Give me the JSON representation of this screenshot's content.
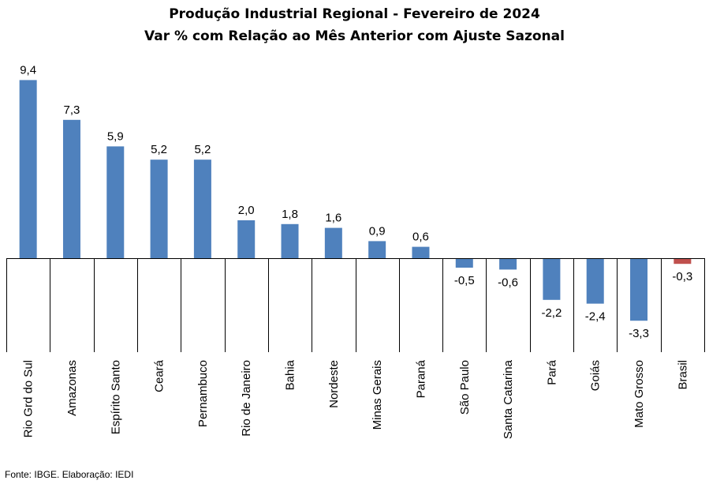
{
  "chart_data": {
    "type": "bar",
    "title": "Produção Industrial Regional  - Fevereiro de 2024",
    "subtitle": "Var % com Relação ao Mês Anterior com Ajuste Sazonal",
    "categories": [
      "Rio Grd do Sul",
      "Amazonas",
      "Espírito Santo",
      "Ceará",
      "Pernambuco",
      "Rio de Janeiro",
      "Bahia",
      "Nordeste",
      "Minas Gerais",
      "Paraná",
      "São Paulo",
      "Santa Catarina",
      "Pará",
      "Goiás",
      "Mato Grosso",
      "Brasil"
    ],
    "values": [
      9.4,
      7.3,
      5.9,
      5.2,
      5.2,
      2.0,
      1.8,
      1.6,
      0.9,
      0.6,
      -0.5,
      -0.6,
      -2.2,
      -2.4,
      -3.3,
      -0.3
    ],
    "data_labels": [
      "9,4",
      "7,3",
      "5,9",
      "5,2",
      "5,2",
      "2,0",
      "1,8",
      "1,6",
      "0,9",
      "0,6",
      "-0,5",
      "-0,6",
      "-2,2",
      "-2,4",
      "-3,3",
      "-0,3"
    ],
    "colors": {
      "default": "#4F81BD",
      "highlight": "#C0504D"
    },
    "highlight_category": "Brasil",
    "ylim": [
      -3.3,
      9.4
    ],
    "grid": false,
    "xlabel": "",
    "ylabel": ""
  },
  "source": "Fonte: IBGE. Elaboração: IEDI"
}
